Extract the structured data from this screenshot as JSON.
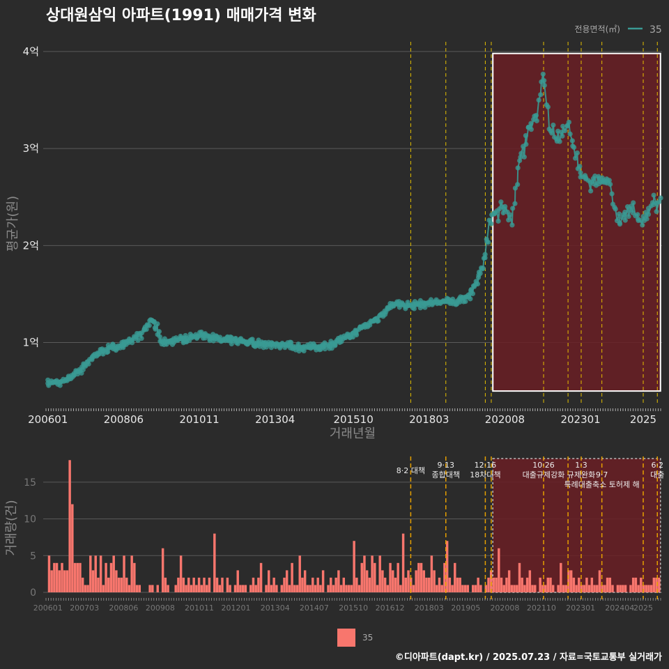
{
  "chart_data": {
    "title": "상대원삼익 아파트(1991) 매매가격 변화",
    "legend": {
      "title": "전용면적(㎡)",
      "series": "35"
    },
    "price_chart": {
      "type": "scatter",
      "xlabel": "거래년월",
      "ylabel": "평균가(원)",
      "x_ticks": [
        "200601",
        "200806",
        "201011",
        "201304",
        "201510",
        "201803",
        "202008",
        "202301",
        "2025"
      ],
      "y_ticks": [
        {
          "value": 1,
          "label": "1억"
        },
        {
          "value": 2,
          "label": "2억"
        },
        {
          "value": 3,
          "label": "3억"
        },
        {
          "value": 4,
          "label": "4억"
        }
      ],
      "ylim": [
        0.35,
        4.1
      ],
      "xlim": [
        2005.85,
        2025.6
      ],
      "highlight_range": [
        2020.2,
        2025.55
      ],
      "highlight_y": [
        0.5,
        3.98
      ],
      "anchors": [
        [
          2006.0,
          0.58
        ],
        [
          2006.5,
          0.6
        ],
        [
          2007.0,
          0.72
        ],
        [
          2007.5,
          0.88
        ],
        [
          2008.0,
          0.95
        ],
        [
          2008.5,
          0.98
        ],
        [
          2009.0,
          1.1
        ],
        [
          2009.3,
          1.25
        ],
        [
          2009.6,
          1.0
        ],
        [
          2010.5,
          1.05
        ],
        [
          2011.0,
          1.08
        ],
        [
          2011.5,
          1.02
        ],
        [
          2012.0,
          1.02
        ],
        [
          2012.5,
          1.0
        ],
        [
          2013.0,
          0.98
        ],
        [
          2013.5,
          0.98
        ],
        [
          2014.0,
          0.95
        ],
        [
          2014.5,
          0.95
        ],
        [
          2015.0,
          0.98
        ],
        [
          2015.5,
          1.05
        ],
        [
          2016.0,
          1.15
        ],
        [
          2016.5,
          1.25
        ],
        [
          2017.0,
          1.4
        ],
        [
          2017.5,
          1.38
        ],
        [
          2018.0,
          1.4
        ],
        [
          2018.5,
          1.42
        ],
        [
          2019.0,
          1.42
        ],
        [
          2019.4,
          1.48
        ],
        [
          2019.7,
          1.65
        ],
        [
          2019.9,
          1.83
        ],
        [
          2020.1,
          2.3
        ],
        [
          2020.5,
          2.4
        ],
        [
          2020.8,
          2.3
        ],
        [
          2021.0,
          2.8
        ],
        [
          2021.3,
          3.2
        ],
        [
          2021.6,
          3.35
        ],
        [
          2021.8,
          3.8
        ],
        [
          2022.0,
          3.2
        ],
        [
          2022.3,
          3.05
        ],
        [
          2022.6,
          3.25
        ],
        [
          2022.9,
          2.8
        ],
        [
          2023.1,
          2.7
        ],
        [
          2023.5,
          2.62
        ],
        [
          2023.9,
          2.7
        ],
        [
          2024.2,
          2.2
        ],
        [
          2024.5,
          2.4
        ],
        [
          2024.9,
          2.25
        ],
        [
          2025.2,
          2.4
        ],
        [
          2025.5,
          2.45
        ]
      ]
    },
    "volume_chart": {
      "type": "bar",
      "ylabel": "거래량(건)",
      "y_ticks": [
        0,
        5,
        10,
        15
      ],
      "ylim": [
        0,
        18.5
      ],
      "x_ticks": [
        "200601",
        "200703",
        "200806",
        "200908",
        "201011",
        "201201",
        "201304",
        "201407",
        "201510",
        "201612",
        "201803",
        "201905",
        "202008",
        "202110",
        "202301",
        "202404",
        "2025"
      ],
      "highlight_range": [
        2020.2,
        2025.55
      ],
      "monthly_volume": [
        5,
        3,
        4,
        4,
        3,
        4,
        3,
        3,
        18,
        12,
        4,
        4,
        4,
        2,
        1,
        1,
        5,
        3,
        5,
        2,
        5,
        1,
        4,
        2,
        4,
        5,
        3,
        2,
        2,
        5,
        2,
        1,
        5,
        4,
        1,
        1,
        0,
        0,
        0,
        1,
        1,
        0,
        1,
        0,
        6,
        2,
        1,
        0,
        0,
        1,
        2,
        5,
        2,
        1,
        2,
        1,
        2,
        1,
        2,
        1,
        2,
        1,
        2,
        0,
        8,
        2,
        1,
        2,
        0,
        2,
        1,
        0,
        1,
        3,
        1,
        1,
        1,
        0,
        1,
        2,
        1,
        2,
        4,
        0,
        1,
        3,
        1,
        2,
        1,
        0,
        1,
        2,
        3,
        1,
        4,
        1,
        1,
        5,
        2,
        3,
        1,
        1,
        2,
        1,
        2,
        1,
        3,
        0,
        1,
        2,
        1,
        2,
        3,
        1,
        2,
        1,
        1,
        1,
        7,
        2,
        1,
        4,
        5,
        3,
        2,
        5,
        4,
        1,
        5,
        3,
        2,
        1,
        4,
        3,
        2,
        4,
        1,
        8,
        2,
        3,
        2,
        1,
        3,
        4,
        4,
        3,
        2,
        2,
        5,
        3,
        1,
        2,
        1,
        4,
        7,
        2,
        1,
        4,
        2,
        2,
        1,
        1,
        1,
        0,
        1,
        1,
        2,
        1,
        0,
        1,
        2,
        3,
        2,
        2,
        6,
        2,
        1,
        2,
        3,
        1,
        1,
        1,
        4,
        2,
        1,
        2,
        3,
        1,
        1,
        0,
        2,
        1,
        1,
        2,
        2,
        1,
        0,
        1,
        4,
        1,
        1,
        3,
        3,
        2,
        1,
        2,
        1,
        1,
        2,
        1,
        2,
        1,
        1,
        3,
        1,
        1,
        2,
        2,
        1,
        0,
        1,
        1,
        1,
        1,
        0,
        1,
        2,
        2,
        1,
        2,
        1,
        1,
        1,
        1,
        2,
        2,
        2
      ],
      "policies": [
        {
          "date": 2017.58,
          "label": "8·2 대책",
          "row": 0
        },
        {
          "date": 2018.7,
          "label": "9·13\n종합대책",
          "row": 0
        },
        {
          "date": 2019.96,
          "label": "12·16\n18차대책",
          "row": 0
        },
        {
          "date": 2020.15,
          "label": "",
          "row": 0
        },
        {
          "date": 2021.82,
          "label": "10·26\n대출규제강화",
          "row": 0
        },
        {
          "date": 2022.6,
          "label": "",
          "row": 0
        },
        {
          "date": 2023.02,
          "label": "1·3\n규제완화",
          "row": 0
        },
        {
          "date": 2023.68,
          "label": "9·7\n특례대출축소 토허제 해",
          "row": 1
        },
        {
          "date": 2025.0,
          "label": "",
          "row": 0
        },
        {
          "date": 2025.45,
          "label": "6·2\n대출",
          "row": 0
        }
      ]
    },
    "volume_legend": "35"
  },
  "footer": "©디아파트(dapt.kr) / 2025.07.23 / 자료=국토교통부 실거래가",
  "colors": {
    "background": "#2b2b2b",
    "grid": "#5a5a5a",
    "price_line": "#3a9a94",
    "bar": "#f8766d",
    "highlight_fill": "#6a1f24",
    "policy_line": "#e6c000",
    "highlight_border": "#ffffff"
  }
}
